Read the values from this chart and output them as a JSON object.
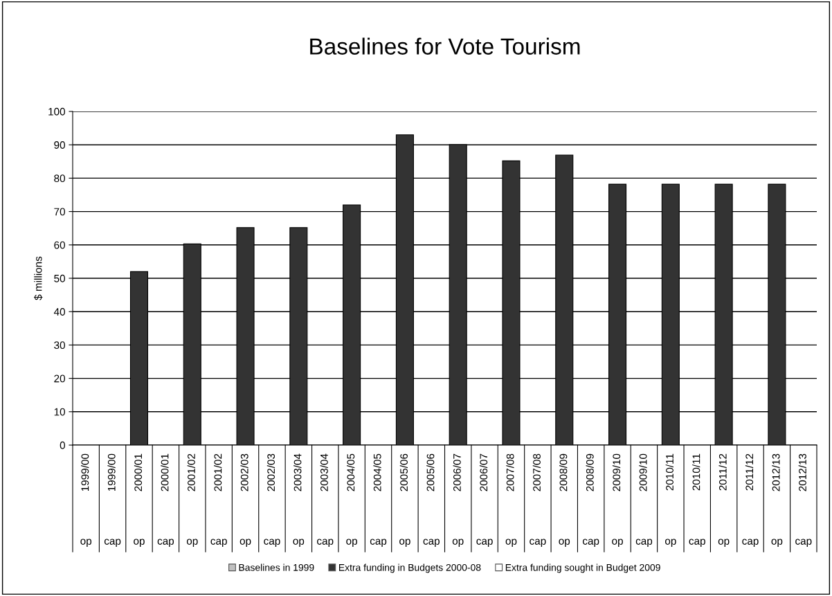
{
  "chart_data": {
    "type": "bar",
    "title": "Baselines for Vote Tourism",
    "ylabel": "$ millions",
    "categories": [
      "1999/00\nop",
      "1999/00\ncap",
      "2000/01\nop",
      "2000/01\ncap",
      "2001/02\nop",
      "2001/02\ncap",
      "2002/03\nop",
      "2002/03\ncap",
      "2003/04\nop",
      "2003/04\ncap",
      "2004/05\nop",
      "2004/05\ncap",
      "2005/06\nop",
      "2005/06\ncap",
      "2006/07\nop",
      "2006/07\ncap",
      "2007/08\nop",
      "2007/08\ncap",
      "2008/09\nop",
      "2008/09\ncap",
      "2009/10\nop",
      "2009/10\ncap",
      "2010/11\nop",
      "2010/11\ncap",
      "2011/12\nop",
      "2011/12\ncap",
      "2012/13\nop",
      "2012/13\ncap"
    ],
    "series": [
      {
        "name": "Baselines in 1999",
        "color": "#c0c0c0",
        "values": [
          null,
          null,
          null,
          null,
          null,
          null,
          null,
          null,
          null,
          null,
          null,
          null,
          null,
          null,
          null,
          null,
          null,
          null,
          null,
          null,
          null,
          null,
          null,
          null,
          null,
          null,
          null,
          null
        ]
      },
      {
        "name": "Extra funding in Budgets 2000-08",
        "color": "#333333",
        "values": [
          null,
          null,
          52,
          null,
          60.3,
          null,
          65.2,
          null,
          65.2,
          null,
          72,
          null,
          93,
          null,
          90.1,
          null,
          85.2,
          null,
          86.9,
          null,
          78.2,
          null,
          78.2,
          null,
          78.2,
          null,
          78.2,
          null
        ]
      },
      {
        "name": "Extra funding sought in Budget 2009",
        "color": "#ffffff",
        "values": [
          null,
          null,
          null,
          null,
          null,
          null,
          null,
          null,
          null,
          null,
          null,
          null,
          null,
          null,
          null,
          null,
          null,
          null,
          null,
          null,
          null,
          null,
          null,
          null,
          null,
          null,
          null,
          null
        ]
      }
    ],
    "ylim": [
      0,
      100
    ],
    "yticks": [
      0,
      10,
      20,
      30,
      40,
      50,
      60,
      70,
      80,
      90,
      100
    ],
    "grid": "y",
    "legend": "bottom"
  }
}
